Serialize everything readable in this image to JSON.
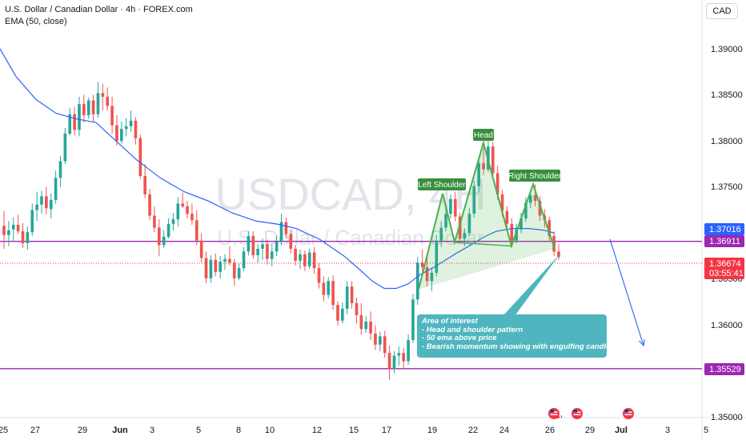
{
  "header": {
    "title": "U.S. Dollar / Canadian Dollar · 4h · FOREX.com",
    "indicator": "EMA (50, close)",
    "currency_button": "CAD"
  },
  "watermark": {
    "symbol": "USDCAD, 4H",
    "name": "U.S. Dollar / Canadian Dollar"
  },
  "colors": {
    "up": "#26a69a",
    "down": "#ef5350",
    "ema": "#2962ff",
    "level": "#9c27b0",
    "pattern": "#4caf50",
    "note": "#4fb6bf",
    "current_price": "#f23645"
  },
  "chart_data": {
    "type": "candlestick",
    "symbol": "USDCAD",
    "timeframe": "4h",
    "y_axis": {
      "ticks": [
        "1.39000",
        "1.38500",
        "1.38000",
        "1.37500",
        "1.37000",
        "1.36500",
        "1.36000",
        "1.35000"
      ],
      "range": [
        1.3485,
        1.3938
      ]
    },
    "x_axis": {
      "ticks": [
        "25",
        "27",
        "29",
        "Jun",
        "3",
        "5",
        "8",
        "10",
        "12",
        "15",
        "17",
        "19",
        "22",
        "24",
        "26",
        "29",
        "Jul",
        "3",
        "5"
      ]
    },
    "price_labels": {
      "ema": "1.37016",
      "upper_level": "1.36911",
      "current": "1.36674",
      "countdown": "03:55:41",
      "lower_level": "1.35529"
    },
    "levels": [
      1.36911,
      1.35529
    ],
    "current_price": 1.36674,
    "pattern": {
      "name": "Head and shoulders",
      "left_shoulder": "Left Shoulder",
      "head": "Head",
      "right_shoulder": "Right Shoulder"
    },
    "annotation": {
      "title": "Area of interest",
      "lines": [
        "- Head and shoulder pattern",
        "- 50 ema above price",
        "- Bearish momentum showing with engulfing candles"
      ]
    },
    "ema_points": [
      [
        0,
        1.39
      ],
      [
        20,
        1.387
      ],
      [
        45,
        1.3845
      ],
      [
        70,
        1.383
      ],
      [
        95,
        1.3824
      ],
      [
        120,
        1.382
      ],
      [
        145,
        1.38
      ],
      [
        170,
        1.378
      ],
      [
        200,
        1.376
      ],
      [
        230,
        1.3745
      ],
      [
        260,
        1.3735
      ],
      [
        290,
        1.3722
      ],
      [
        320,
        1.3713
      ],
      [
        345,
        1.371
      ],
      [
        370,
        1.3705
      ],
      [
        400,
        1.3693
      ],
      [
        430,
        1.3675
      ],
      [
        450,
        1.366
      ],
      [
        465,
        1.3648
      ],
      [
        480,
        1.364
      ],
      [
        495,
        1.364
      ],
      [
        510,
        1.3645
      ],
      [
        525,
        1.3655
      ],
      [
        540,
        1.3662
      ],
      [
        555,
        1.367
      ],
      [
        570,
        1.3678
      ],
      [
        590,
        1.3688
      ],
      [
        605,
        1.3696
      ],
      [
        620,
        1.3702
      ],
      [
        640,
        1.3705
      ],
      [
        660,
        1.3705
      ],
      [
        680,
        1.3703
      ],
      [
        693,
        1.37
      ]
    ],
    "forecast_arrow": {
      "from": [
        762,
        1.36935
      ],
      "to": [
        804,
        1.3578
      ]
    },
    "pattern_path": [
      [
        523,
        1.3639
      ],
      [
        553,
        1.3743
      ],
      [
        568,
        1.369
      ],
      [
        604,
        1.3798
      ],
      [
        639,
        1.3686
      ],
      [
        666,
        1.3753
      ],
      [
        693,
        1.3683
      ]
    ],
    "candles": [
      [
        1.3708,
        1.3724,
        1.3683,
        1.3698
      ],
      [
        1.3698,
        1.3713,
        1.3686,
        1.3703
      ],
      [
        1.3704,
        1.3717,
        1.3692,
        1.3709
      ],
      [
        1.3709,
        1.372,
        1.3699,
        1.3702
      ],
      [
        1.3702,
        1.3711,
        1.3684,
        1.3689
      ],
      [
        1.3689,
        1.3707,
        1.3682,
        1.3701
      ],
      [
        1.3701,
        1.3732,
        1.3697,
        1.3725
      ],
      [
        1.3725,
        1.3745,
        1.3713,
        1.3731
      ],
      [
        1.3731,
        1.3746,
        1.3721,
        1.374
      ],
      [
        1.374,
        1.375,
        1.372,
        1.3727
      ],
      [
        1.3726,
        1.3743,
        1.3716,
        1.3736
      ],
      [
        1.3736,
        1.3768,
        1.3732,
        1.376
      ],
      [
        1.376,
        1.3784,
        1.375,
        1.3778
      ],
      [
        1.3778,
        1.3814,
        1.3775,
        1.3808
      ],
      [
        1.3808,
        1.3836,
        1.3806,
        1.3829
      ],
      [
        1.3829,
        1.3837,
        1.3806,
        1.3812
      ],
      [
        1.3812,
        1.3848,
        1.3805,
        1.384
      ],
      [
        1.384,
        1.385,
        1.382,
        1.3828
      ],
      [
        1.3828,
        1.3847,
        1.3824,
        1.3844
      ],
      [
        1.3844,
        1.385,
        1.382,
        1.3829
      ],
      [
        1.3829,
        1.3864,
        1.3825,
        1.3852
      ],
      [
        1.3852,
        1.3862,
        1.3833,
        1.3848
      ],
      [
        1.3848,
        1.3858,
        1.3833,
        1.3838
      ],
      [
        1.3838,
        1.3848,
        1.3808,
        1.3817
      ],
      [
        1.3817,
        1.3828,
        1.3795,
        1.38
      ],
      [
        1.38,
        1.3821,
        1.3797,
        1.3813
      ],
      [
        1.3813,
        1.3825,
        1.3805,
        1.3816
      ],
      [
        1.3816,
        1.3833,
        1.381,
        1.3822
      ],
      [
        1.3822,
        1.3826,
        1.3796,
        1.3803
      ],
      [
        1.3803,
        1.3807,
        1.3759,
        1.3762
      ],
      [
        1.3762,
        1.3775,
        1.3738,
        1.3742
      ],
      [
        1.3742,
        1.3748,
        1.3714,
        1.3719
      ],
      [
        1.3719,
        1.3729,
        1.3701,
        1.3706
      ],
      [
        1.3706,
        1.3715,
        1.3675,
        1.3687
      ],
      [
        1.3687,
        1.3703,
        1.3684,
        1.3696
      ],
      [
        1.3696,
        1.3716,
        1.3694,
        1.371
      ],
      [
        1.371,
        1.3722,
        1.3703,
        1.3715
      ],
      [
        1.3715,
        1.3739,
        1.3707,
        1.3732
      ],
      [
        1.3732,
        1.3744,
        1.3727,
        1.3729
      ],
      [
        1.3729,
        1.3735,
        1.3716,
        1.3721
      ],
      [
        1.3721,
        1.3732,
        1.3709,
        1.3714
      ],
      [
        1.3714,
        1.3725,
        1.3687,
        1.3692
      ],
      [
        1.3692,
        1.37,
        1.3668,
        1.3673
      ],
      [
        1.3673,
        1.368,
        1.3646,
        1.3651
      ],
      [
        1.3651,
        1.3676,
        1.3646,
        1.3671
      ],
      [
        1.3671,
        1.3678,
        1.3653,
        1.3658
      ],
      [
        1.3658,
        1.3675,
        1.3651,
        1.3669
      ],
      [
        1.3669,
        1.3677,
        1.366,
        1.3672
      ],
      [
        1.3672,
        1.3686,
        1.3665,
        1.3668
      ],
      [
        1.3668,
        1.3672,
        1.3643,
        1.3651
      ],
      [
        1.3651,
        1.3667,
        1.3649,
        1.3662
      ],
      [
        1.3662,
        1.3685,
        1.3659,
        1.368
      ],
      [
        1.368,
        1.3702,
        1.3676,
        1.3697
      ],
      [
        1.3697,
        1.3702,
        1.3672,
        1.3676
      ],
      [
        1.3676,
        1.3688,
        1.3668,
        1.3683
      ],
      [
        1.3683,
        1.3694,
        1.3671,
        1.3688
      ],
      [
        1.3688,
        1.3693,
        1.3666,
        1.3672
      ],
      [
        1.3672,
        1.3688,
        1.3664,
        1.368
      ],
      [
        1.368,
        1.3697,
        1.3675,
        1.3691
      ],
      [
        1.3691,
        1.3721,
        1.3687,
        1.3712
      ],
      [
        1.3712,
        1.3717,
        1.3694,
        1.3699
      ],
      [
        1.3699,
        1.3704,
        1.3678,
        1.3683
      ],
      [
        1.3683,
        1.3687,
        1.3665,
        1.367
      ],
      [
        1.367,
        1.3682,
        1.3661,
        1.3677
      ],
      [
        1.3677,
        1.3681,
        1.3659,
        1.3664
      ],
      [
        1.3664,
        1.3683,
        1.3661,
        1.3679
      ],
      [
        1.3679,
        1.3685,
        1.3656,
        1.3662
      ],
      [
        1.3662,
        1.3667,
        1.364,
        1.3646
      ],
      [
        1.3646,
        1.3653,
        1.3626,
        1.3633
      ],
      [
        1.3633,
        1.3652,
        1.3629,
        1.3648
      ],
      [
        1.3648,
        1.3654,
        1.3617,
        1.3622
      ],
      [
        1.3622,
        1.3626,
        1.36,
        1.3605
      ],
      [
        1.3605,
        1.3625,
        1.3602,
        1.3618
      ],
      [
        1.3618,
        1.3648,
        1.3612,
        1.3642
      ],
      [
        1.3642,
        1.3648,
        1.3618,
        1.3624
      ],
      [
        1.3624,
        1.363,
        1.3602,
        1.3611
      ],
      [
        1.3611,
        1.3624,
        1.359,
        1.3596
      ],
      [
        1.3596,
        1.361,
        1.3592,
        1.3604
      ],
      [
        1.3604,
        1.3615,
        1.3584,
        1.3591
      ],
      [
        1.3591,
        1.36,
        1.3573,
        1.3579
      ],
      [
        1.3579,
        1.3593,
        1.3572,
        1.3588
      ],
      [
        1.3588,
        1.3594,
        1.3565,
        1.357
      ],
      [
        1.357,
        1.3578,
        1.3541,
        1.3553
      ],
      [
        1.3553,
        1.3572,
        1.3548,
        1.3567
      ],
      [
        1.3567,
        1.3577,
        1.3556,
        1.357
      ],
      [
        1.357,
        1.3575,
        1.3553,
        1.3561
      ],
      [
        1.3561,
        1.359,
        1.3557,
        1.3584
      ],
      [
        1.3584,
        1.3634,
        1.3581,
        1.3628
      ],
      [
        1.3628,
        1.3674,
        1.3622,
        1.3668
      ],
      [
        1.3668,
        1.3682,
        1.3658,
        1.3663
      ],
      [
        1.3663,
        1.3676,
        1.3642,
        1.3648
      ],
      [
        1.3648,
        1.3663,
        1.3637,
        1.3657
      ],
      [
        1.3657,
        1.3698,
        1.3653,
        1.3692
      ],
      [
        1.3692,
        1.3713,
        1.3685,
        1.3706
      ],
      [
        1.3706,
        1.3727,
        1.3702,
        1.3721
      ],
      [
        1.3721,
        1.3742,
        1.3716,
        1.3737
      ],
      [
        1.3737,
        1.3745,
        1.3713,
        1.3718
      ],
      [
        1.3718,
        1.3722,
        1.369,
        1.3694
      ],
      [
        1.3694,
        1.3705,
        1.3686,
        1.37
      ],
      [
        1.37,
        1.3727,
        1.3697,
        1.3721
      ],
      [
        1.3721,
        1.3757,
        1.3717,
        1.3751
      ],
      [
        1.3751,
        1.3782,
        1.3744,
        1.3776
      ],
      [
        1.3776,
        1.3793,
        1.3763,
        1.3769
      ],
      [
        1.3769,
        1.38,
        1.3766,
        1.3794
      ],
      [
        1.3794,
        1.3799,
        1.376,
        1.3765
      ],
      [
        1.3765,
        1.3773,
        1.3736,
        1.3742
      ],
      [
        1.3742,
        1.3747,
        1.3718,
        1.3724
      ],
      [
        1.3724,
        1.3729,
        1.3704,
        1.371
      ],
      [
        1.371,
        1.3716,
        1.3686,
        1.3692
      ],
      [
        1.3692,
        1.371,
        1.3689,
        1.3704
      ],
      [
        1.3704,
        1.3722,
        1.37,
        1.3716
      ],
      [
        1.3716,
        1.3739,
        1.3712,
        1.3733
      ],
      [
        1.3733,
        1.3746,
        1.3727,
        1.3741
      ],
      [
        1.3741,
        1.3753,
        1.3729,
        1.3735
      ],
      [
        1.3735,
        1.374,
        1.3713,
        1.3719
      ],
      [
        1.3719,
        1.3726,
        1.3706,
        1.3714
      ],
      [
        1.3714,
        1.3718,
        1.3692,
        1.3697
      ],
      [
        1.3697,
        1.3702,
        1.3675,
        1.368
      ],
      [
        1.368,
        1.3688,
        1.3671,
        1.3674
      ]
    ]
  }
}
